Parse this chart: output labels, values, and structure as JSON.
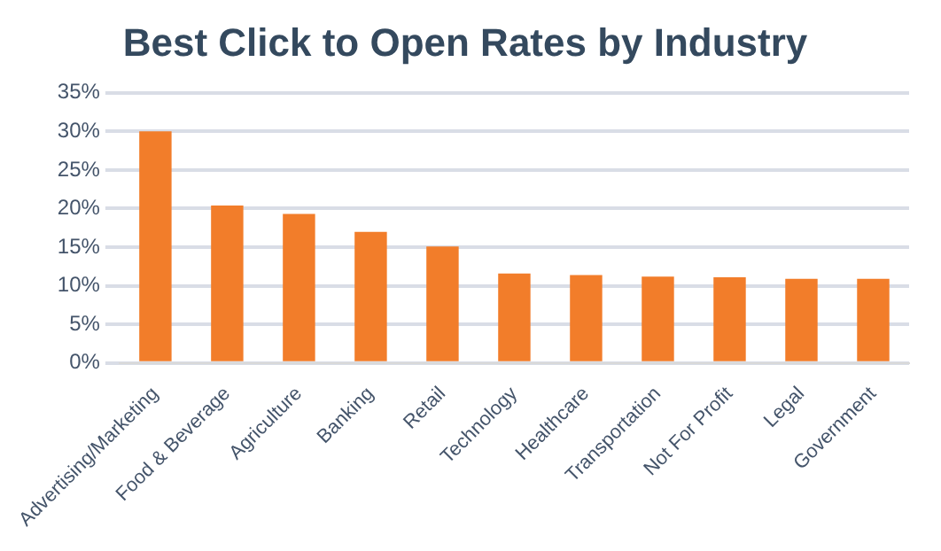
{
  "chart_data": {
    "type": "bar",
    "title": "Best Click to Open Rates by Industry",
    "categories": [
      "Advertising/Marketing",
      "Food & Beverage",
      "Agriculture",
      "Banking",
      "Retail",
      "Technology",
      "Healthcare",
      "Transportation",
      "Not For Profit",
      "Legal",
      "Government"
    ],
    "values": [
      30,
      20.4,
      19.3,
      17,
      15.1,
      11.6,
      11.4,
      11.2,
      11.1,
      10.9,
      10.9
    ],
    "color": "#f27d2a",
    "ylim": [
      0,
      35
    ],
    "yticks": [
      {
        "value": 0,
        "label": "0%"
      },
      {
        "value": 5,
        "label": "5%"
      },
      {
        "value": 10,
        "label": "10%"
      },
      {
        "value": 15,
        "label": "15%"
      },
      {
        "value": 20,
        "label": "20%"
      },
      {
        "value": 25,
        "label": "25%"
      },
      {
        "value": 30,
        "label": "30%"
      },
      {
        "value": 35,
        "label": "35%"
      }
    ],
    "grid": "y",
    "legend": false
  }
}
